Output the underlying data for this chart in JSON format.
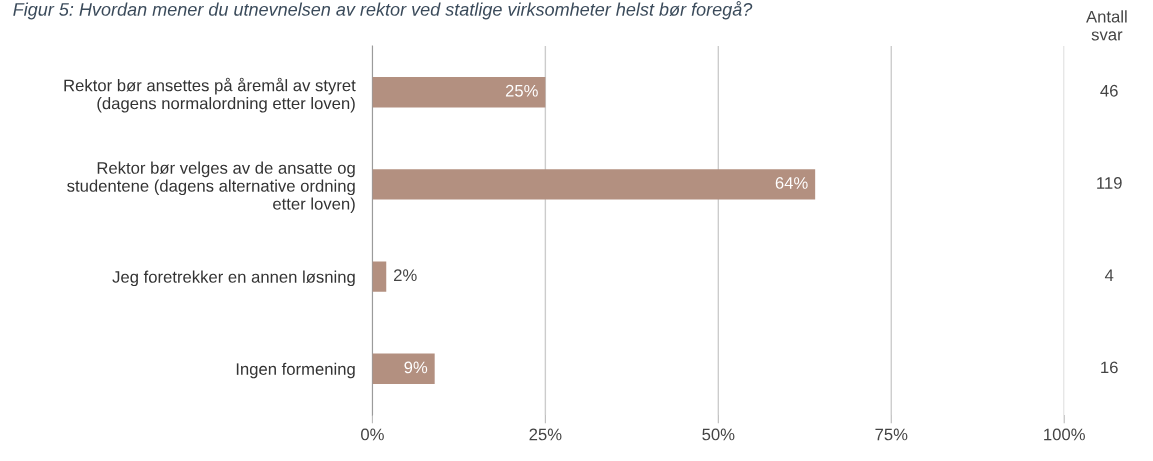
{
  "chart_data": {
    "type": "bar",
    "orientation": "horizontal",
    "title": "Figur 5: Hvordan mener du utnevnelsen av rektor ved statlige virksomheter helst bør foregå?",
    "categories": [
      "Rektor bør ansettes på åremål av styret\n(dagens normalordning etter loven)",
      "Rektor bør velges av de ansatte og\nstudentene (dagens alternative ordning\netter loven)",
      "Jeg foretrekker en annen løsning",
      "Ingen formening"
    ],
    "values": [
      25,
      64,
      2,
      9
    ],
    "value_labels": [
      "25%",
      "64%",
      "2%",
      "9%"
    ],
    "color": "#b39080",
    "xlim": [
      0,
      100
    ],
    "xticks": [
      {
        "value": 0,
        "label": "0%"
      },
      {
        "value": 25,
        "label": "25%"
      },
      {
        "value": 50,
        "label": "50%"
      },
      {
        "value": 75,
        "label": "75%"
      },
      {
        "value": 100,
        "label": "100%"
      }
    ],
    "grid": "x",
    "annotations": [
      "Antall\nsvar",
      "46",
      "119",
      "4",
      "16"
    ]
  }
}
